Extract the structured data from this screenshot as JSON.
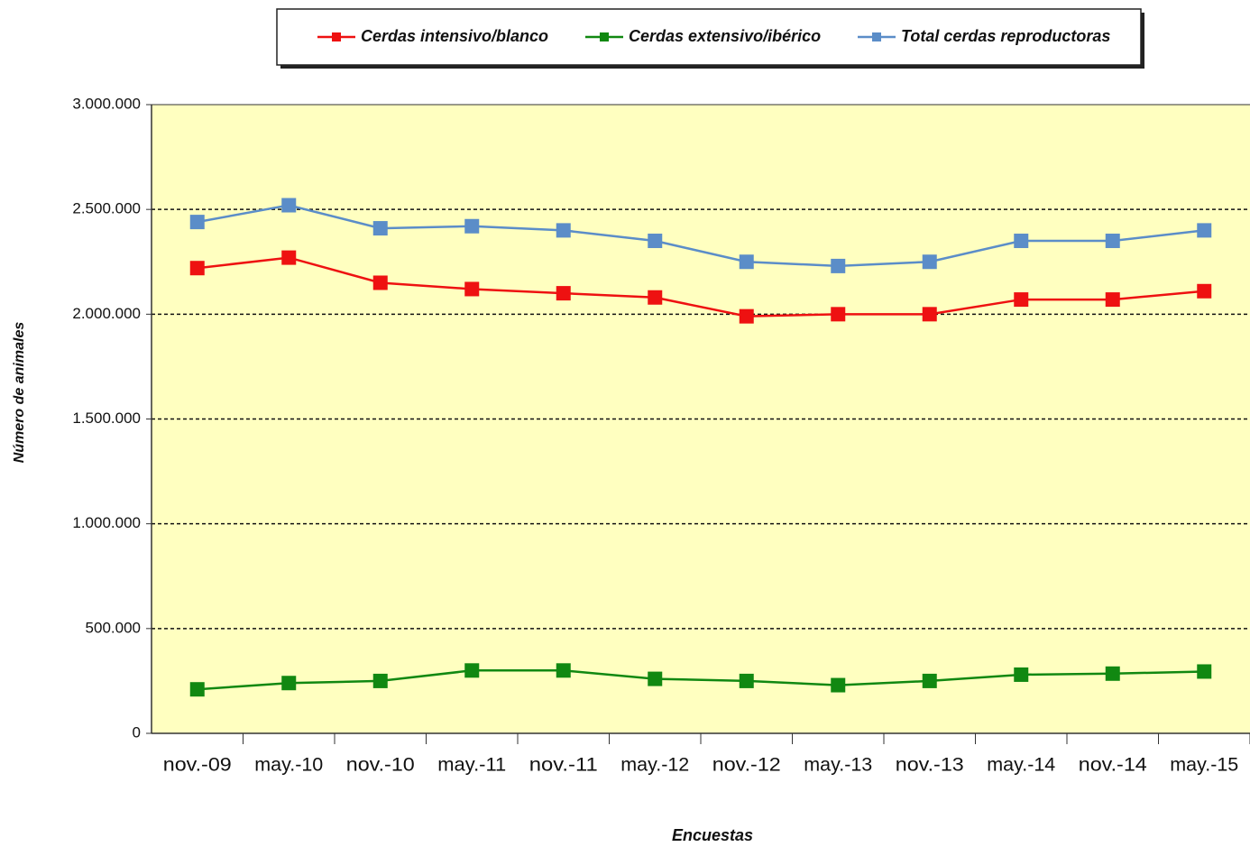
{
  "chart_data": {
    "type": "line",
    "categories": [
      "nov.-09",
      "may.-10",
      "nov.-10",
      "may.-11",
      "nov.-11",
      "may.-12",
      "nov.-12",
      "may.-13",
      "nov.-13",
      "may.-14",
      "nov.-14",
      "may.-15"
    ],
    "series": [
      {
        "name": "Cerdas intensivo/blanco",
        "color": "#ee1111",
        "values": [
          2220000,
          2270000,
          2150000,
          2120000,
          2100000,
          2080000,
          1990000,
          2000000,
          2000000,
          2070000,
          2070000,
          2110000
        ]
      },
      {
        "name": "Cerdas extensivo/ibérico",
        "color": "#118811",
        "values": [
          210000,
          240000,
          250000,
          300000,
          300000,
          260000,
          250000,
          230000,
          250000,
          280000,
          285000,
          295000
        ]
      },
      {
        "name": "Total cerdas reproductoras",
        "color": "#5b8dc8",
        "values": [
          2440000,
          2520000,
          2410000,
          2420000,
          2400000,
          2350000,
          2250000,
          2230000,
          2250000,
          2350000,
          2350000,
          2400000
        ]
      }
    ],
    "ylim": [
      0,
      3000000
    ],
    "yticks": [
      0,
      {
        "value": 500000,
        "label": "500.000"
      },
      {
        "value": 1000000,
        "label": "1.000.000"
      },
      {
        "value": 1500000,
        "label": "1.500.000"
      },
      {
        "value": 2000000,
        "label": "2.000.000"
      },
      {
        "value": 2500000,
        "label": "2.500.000"
      },
      {
        "value": 3000000,
        "label": "3.000.000"
      }
    ],
    "grid": true,
    "xlabel": "Encuestas",
    "ylabel": "Número de animales",
    "legend": "top"
  }
}
